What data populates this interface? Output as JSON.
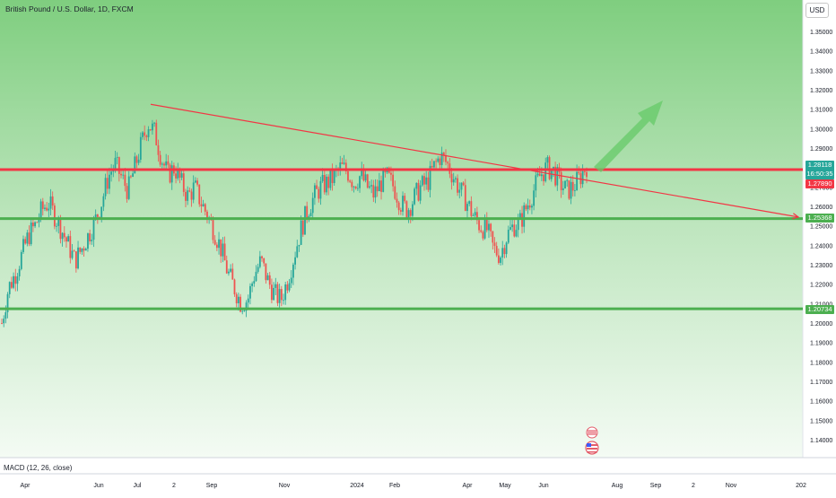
{
  "header": {
    "title": "British Pound / U.S. Dollar, 1D, FXCM",
    "currency_button": "USD"
  },
  "indicator": {
    "label": "MACD (12, 26, close)"
  },
  "price_tags": {
    "last_price": "1.28118",
    "countdown": "16:50:35",
    "red_level": "1.27890",
    "green_level_1": "1.25368",
    "green_level_2": "1.20734"
  },
  "colors": {
    "up_candle": "#26a69a",
    "down_candle": "#ef5350",
    "resistance_line": "#f23645",
    "support_line": "#4caf50",
    "trend_line": "#f23645",
    "arrow": "#66c968",
    "background_top": "#7fce7f",
    "background_bottom": "#f4fbf4"
  },
  "icons": [
    "flag-gb-icon",
    "flag-us-icon"
  ],
  "chart_data": {
    "type": "candlestick",
    "x_ticks": [
      "Apr",
      "Jun",
      "Jul",
      "2",
      "Sep",
      "Nov",
      "2024",
      "Feb",
      "Apr",
      "May",
      "Jun",
      "Aug",
      "Sep",
      "2",
      "Nov",
      "202"
    ],
    "y_ticks": [
      "1.35000",
      "1.34000",
      "1.33000",
      "1.32000",
      "1.31000",
      "1.30000",
      "1.29000",
      "1.28000",
      "1.27000",
      "1.26000",
      "1.25000",
      "1.24000",
      "1.23000",
      "1.22000",
      "1.21000",
      "1.20000",
      "1.19000",
      "1.18000",
      "1.17000",
      "1.16000",
      "1.15000",
      "1.14000"
    ],
    "ylim": [
      1.134,
      1.36
    ],
    "horizontal_levels": [
      {
        "name": "resistance",
        "value": 1.2789,
        "color": "red"
      },
      {
        "name": "support-1",
        "value": 1.2537,
        "color": "green"
      },
      {
        "name": "support-2",
        "value": 1.2073,
        "color": "green"
      }
    ],
    "trend_line": {
      "start": {
        "x": "Jul",
        "y": 1.3125
      },
      "end": {
        "x": "Aug+",
        "y": 1.2545
      }
    },
    "close_path": [
      1.2,
      1.218,
      1.225,
      1.235,
      1.245,
      1.25,
      1.258,
      1.262,
      1.255,
      1.248,
      1.24,
      1.232,
      1.238,
      1.245,
      1.252,
      1.262,
      1.275,
      1.282,
      1.275,
      1.268,
      1.28,
      1.292,
      1.303,
      1.298,
      1.285,
      1.276,
      1.28,
      1.272,
      1.265,
      1.27,
      1.262,
      1.255,
      1.247,
      1.238,
      1.226,
      1.218,
      1.21,
      1.212,
      1.225,
      1.232,
      1.222,
      1.215,
      1.212,
      1.222,
      1.235,
      1.248,
      1.258,
      1.265,
      1.27,
      1.272,
      1.275,
      1.28,
      1.278,
      1.272,
      1.276,
      1.27,
      1.266,
      1.272,
      1.275,
      1.27,
      1.262,
      1.258,
      1.264,
      1.27,
      1.272,
      1.28,
      1.286,
      1.282,
      1.275,
      1.268,
      1.262,
      1.255,
      1.25,
      1.248,
      1.238,
      1.235,
      1.245,
      1.25,
      1.252,
      1.26,
      1.268,
      1.276,
      1.28,
      1.278,
      1.272,
      1.268,
      1.27,
      1.275,
      1.281
    ]
  }
}
